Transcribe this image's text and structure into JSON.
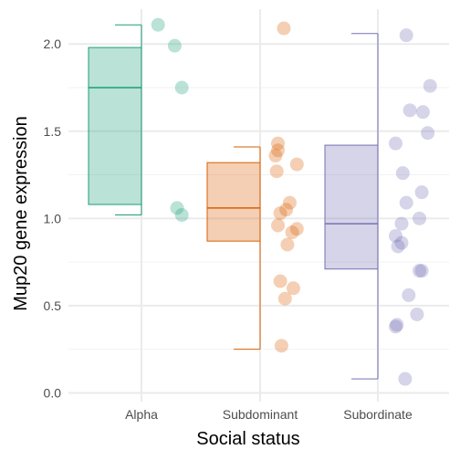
{
  "chart_data": {
    "type": "box",
    "xlabel": "Social status",
    "ylabel": "Mup20 gene expression",
    "categories": [
      "Alpha",
      "Subdominant",
      "Subordinate"
    ],
    "ylim": [
      -0.05,
      2.2
    ],
    "yticks": [
      0.0,
      0.5,
      1.0,
      1.5,
      2.0
    ],
    "ytick_labels": [
      "0.0",
      "0.5",
      "1.0",
      "1.5",
      "2.0"
    ],
    "grid": true,
    "legend": "none",
    "colors": [
      "#1b9e77",
      "#d95f02",
      "#7570b3"
    ],
    "boxes": [
      {
        "category": "Alpha",
        "whisker_low": 1.02,
        "q1": 1.08,
        "median": 1.75,
        "q3": 1.98,
        "whisker_high": 2.11
      },
      {
        "category": "Subdominant",
        "whisker_low": 0.25,
        "q1": 0.87,
        "median": 1.06,
        "q3": 1.32,
        "whisker_high": 1.41
      },
      {
        "category": "Subordinate",
        "whisker_low": 0.08,
        "q1": 0.71,
        "median": 0.97,
        "q3": 1.42,
        "whisker_high": 2.06
      }
    ],
    "points": [
      {
        "category": "Alpha",
        "jitter": 0.14,
        "y": 2.11
      },
      {
        "category": "Alpha",
        "jitter": 0.28,
        "y": 1.99
      },
      {
        "category": "Alpha",
        "jitter": 0.34,
        "y": 1.75
      },
      {
        "category": "Alpha",
        "jitter": 0.3,
        "y": 1.06
      },
      {
        "category": "Alpha",
        "jitter": 0.34,
        "y": 1.02
      },
      {
        "category": "Subdominant",
        "jitter": 0.2,
        "y": 2.09
      },
      {
        "category": "Subdominant",
        "jitter": 0.15,
        "y": 1.43
      },
      {
        "category": "Subdominant",
        "jitter": 0.15,
        "y": 1.39
      },
      {
        "category": "Subdominant",
        "jitter": 0.13,
        "y": 1.36
      },
      {
        "category": "Subdominant",
        "jitter": 0.31,
        "y": 1.31
      },
      {
        "category": "Subdominant",
        "jitter": 0.14,
        "y": 1.27
      },
      {
        "category": "Subdominant",
        "jitter": 0.25,
        "y": 1.09
      },
      {
        "category": "Subdominant",
        "jitter": 0.22,
        "y": 1.05
      },
      {
        "category": "Subdominant",
        "jitter": 0.17,
        "y": 1.03
      },
      {
        "category": "Subdominant",
        "jitter": 0.15,
        "y": 0.96
      },
      {
        "category": "Subdominant",
        "jitter": 0.31,
        "y": 0.94
      },
      {
        "category": "Subdominant",
        "jitter": 0.27,
        "y": 0.92
      },
      {
        "category": "Subdominant",
        "jitter": 0.23,
        "y": 0.85
      },
      {
        "category": "Subdominant",
        "jitter": 0.17,
        "y": 0.64
      },
      {
        "category": "Subdominant",
        "jitter": 0.28,
        "y": 0.6
      },
      {
        "category": "Subdominant",
        "jitter": 0.21,
        "y": 0.54
      },
      {
        "category": "Subdominant",
        "jitter": 0.18,
        "y": 0.27
      },
      {
        "category": "Subordinate",
        "jitter": 0.24,
        "y": 2.05
      },
      {
        "category": "Subordinate",
        "jitter": 0.44,
        "y": 1.76
      },
      {
        "category": "Subordinate",
        "jitter": 0.27,
        "y": 1.62
      },
      {
        "category": "Subordinate",
        "jitter": 0.38,
        "y": 1.61
      },
      {
        "category": "Subordinate",
        "jitter": 0.42,
        "y": 1.49
      },
      {
        "category": "Subordinate",
        "jitter": 0.15,
        "y": 1.43
      },
      {
        "category": "Subordinate",
        "jitter": 0.21,
        "y": 1.26
      },
      {
        "category": "Subordinate",
        "jitter": 0.37,
        "y": 1.15
      },
      {
        "category": "Subordinate",
        "jitter": 0.24,
        "y": 1.09
      },
      {
        "category": "Subordinate",
        "jitter": 0.35,
        "y": 1.0
      },
      {
        "category": "Subordinate",
        "jitter": 0.2,
        "y": 0.97
      },
      {
        "category": "Subordinate",
        "jitter": 0.15,
        "y": 0.9
      },
      {
        "category": "Subordinate",
        "jitter": 0.2,
        "y": 0.86
      },
      {
        "category": "Subordinate",
        "jitter": 0.17,
        "y": 0.84
      },
      {
        "category": "Subordinate",
        "jitter": 0.35,
        "y": 0.7
      },
      {
        "category": "Subordinate",
        "jitter": 0.37,
        "y": 0.7
      },
      {
        "category": "Subordinate",
        "jitter": 0.26,
        "y": 0.56
      },
      {
        "category": "Subordinate",
        "jitter": 0.33,
        "y": 0.45
      },
      {
        "category": "Subordinate",
        "jitter": 0.16,
        "y": 0.39
      },
      {
        "category": "Subordinate",
        "jitter": 0.15,
        "y": 0.38
      },
      {
        "category": "Subordinate",
        "jitter": 0.23,
        "y": 0.08
      }
    ]
  }
}
